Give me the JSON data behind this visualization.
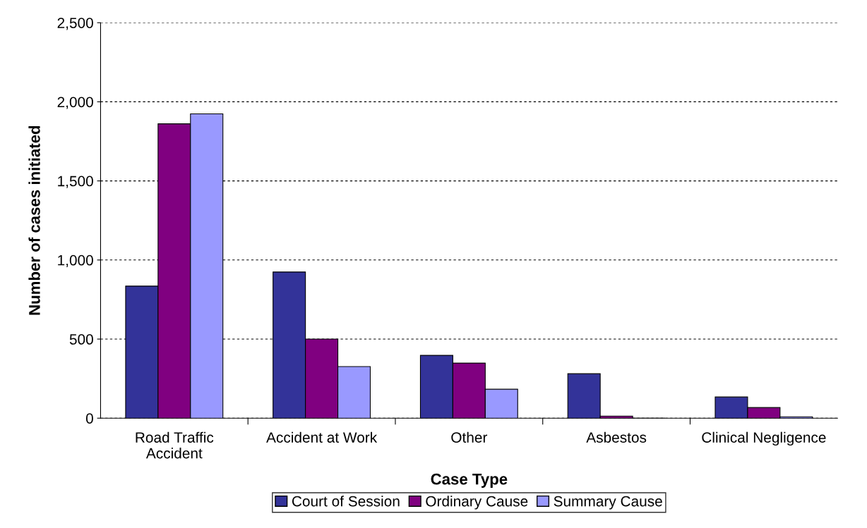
{
  "chart_data": {
    "type": "bar",
    "xlabel": "Case Type",
    "ylabel": "Number of cases initiated",
    "categories": [
      "Road Traffic\nAccident",
      "Accident at Work",
      "Other",
      "Asbestos",
      "Clinical Negligence"
    ],
    "series": [
      {
        "name": "Court of Session",
        "color": "#333399",
        "values": [
          835,
          924,
          397,
          281,
          134
        ]
      },
      {
        "name": "Ordinary Cause",
        "color": "#800080",
        "values": [
          1861,
          500,
          348,
          13,
          67
        ]
      },
      {
        "name": "Summary Cause",
        "color": "#9999ff",
        "values": [
          1924,
          326,
          183,
          0,
          9
        ]
      }
    ],
    "ylim": [
      0,
      2500
    ],
    "yticks": [
      0,
      500,
      {
        "value": 1000,
        "label": "1,000"
      },
      {
        "value": 1500,
        "label": "1,500"
      },
      {
        "value": 2000,
        "label": "2,000"
      },
      {
        "value": 2500,
        "label": "2,500"
      }
    ],
    "grid": "y",
    "legend": "bottom"
  }
}
